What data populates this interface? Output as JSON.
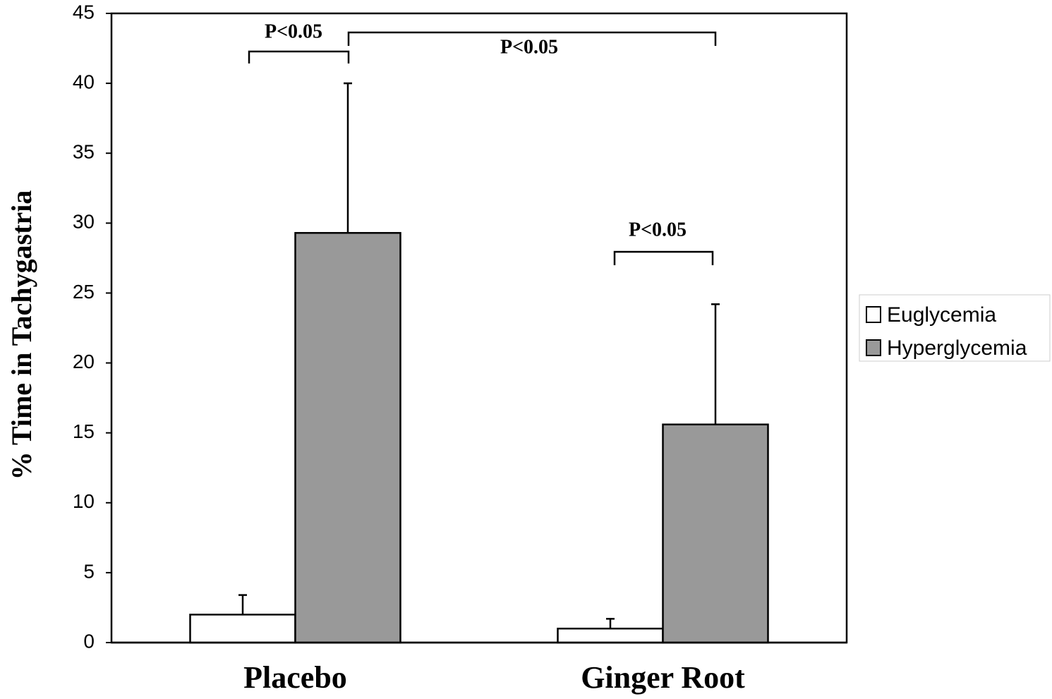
{
  "chart_data": {
    "type": "bar",
    "y_label": "% Time in Tachygastria",
    "categories": [
      "Placebo",
      "Ginger Root"
    ],
    "series": [
      {
        "name": "Euglycemia",
        "color": "#ffffff",
        "values": [
          2.0,
          1.0
        ],
        "errors": [
          1.4,
          0.7
        ]
      },
      {
        "name": "Hyperglycemia",
        "color": "#999999",
        "values": [
          29.3,
          15.6
        ],
        "errors": [
          10.7,
          8.6
        ]
      }
    ],
    "annotations": [
      "P<0.05",
      "P<0.05",
      "P<0.05"
    ],
    "ylim": [
      0,
      45
    ],
    "yticks": [
      0,
      5,
      10,
      15,
      20,
      25,
      30,
      35,
      40,
      45
    ],
    "grid": false,
    "legend": "right"
  }
}
